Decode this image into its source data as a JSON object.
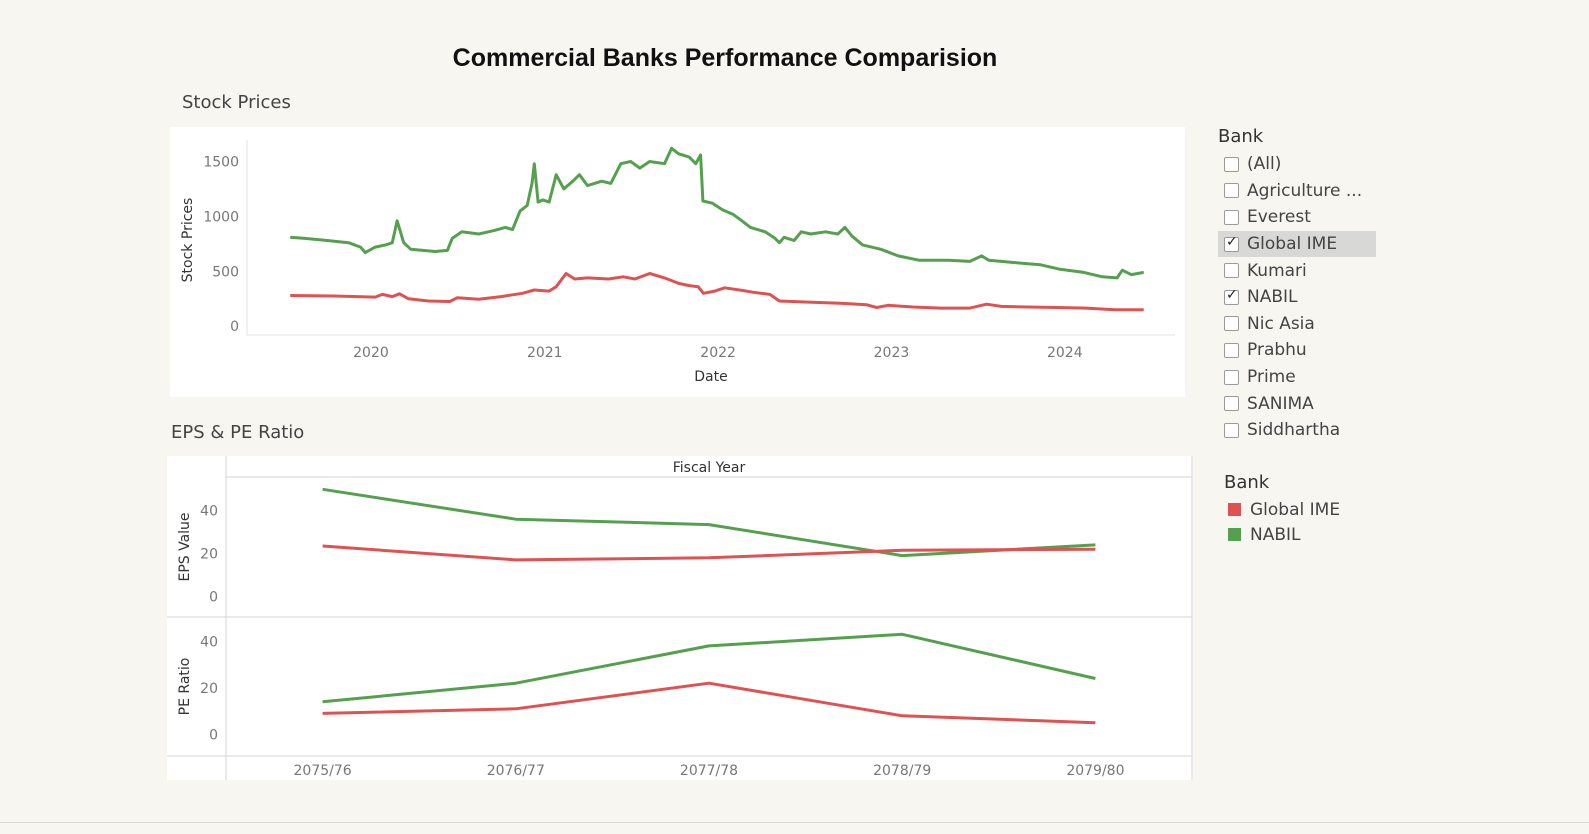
{
  "dashboard": {
    "title": "Commercial Banks Performance Comparision",
    "stock_section_title": "Stock Prices",
    "eps_section_title": "EPS & PE Ratio"
  },
  "filter": {
    "heading": "Bank",
    "items": [
      {
        "label": "(All)",
        "checked": false
      },
      {
        "label": "Agriculture ...",
        "checked": false
      },
      {
        "label": "Everest",
        "checked": false
      },
      {
        "label": "Global IME",
        "checked": true,
        "highlighted": true
      },
      {
        "label": "Kumari",
        "checked": false
      },
      {
        "label": "NABIL",
        "checked": true
      },
      {
        "label": "Nic Asia",
        "checked": false
      },
      {
        "label": "Prabhu",
        "checked": false
      },
      {
        "label": "Prime",
        "checked": false
      },
      {
        "label": "SANIMA",
        "checked": false
      },
      {
        "label": "Siddhartha",
        "checked": false
      }
    ]
  },
  "legend": {
    "heading": "Bank",
    "items": [
      {
        "label": "Global IME",
        "color": "#e05252"
      },
      {
        "label": "NABIL",
        "color": "#55a04f"
      }
    ]
  },
  "chart_data": [
    {
      "type": "line",
      "xlabel": "Date",
      "ylabel": "Stock Prices",
      "x_ticks": [
        "2020",
        "2021",
        "2022",
        "2023",
        "2024"
      ],
      "y_ticks": [
        0,
        500,
        1000,
        1500
      ],
      "ylim": [
        -80,
        1650
      ],
      "xlim": [
        "2019-04-15",
        "2024-08-20"
      ],
      "series": [
        {
          "name": "NABIL",
          "color": "#55a04f",
          "points": [
            [
              "2019-07-15",
              810
            ],
            [
              "2019-08-15",
              800
            ],
            [
              "2019-10-01",
              780
            ],
            [
              "2019-11-15",
              760
            ],
            [
              "2019-12-10",
              720
            ],
            [
              "2019-12-20",
              670
            ],
            [
              "2020-01-10",
              720
            ],
            [
              "2020-02-01",
              740
            ],
            [
              "2020-02-15",
              760
            ],
            [
              "2020-02-25",
              960
            ],
            [
              "2020-03-10",
              760
            ],
            [
              "2020-03-25",
              700
            ],
            [
              "2020-05-15",
              680
            ],
            [
              "2020-06-10",
              690
            ],
            [
              "2020-06-20",
              800
            ],
            [
              "2020-07-10",
              860
            ],
            [
              "2020-08-15",
              840
            ],
            [
              "2020-09-15",
              870
            ],
            [
              "2020-10-10",
              900
            ],
            [
              "2020-10-25",
              880
            ],
            [
              "2020-11-10",
              1050
            ],
            [
              "2020-11-25",
              1100
            ],
            [
              "2020-12-05",
              1300
            ],
            [
              "2020-12-10",
              1480
            ],
            [
              "2020-12-18",
              1130
            ],
            [
              "2020-12-28",
              1150
            ],
            [
              "2021-01-10",
              1130
            ],
            [
              "2021-01-25",
              1380
            ],
            [
              "2021-02-10",
              1250
            ],
            [
              "2021-03-01",
              1320
            ],
            [
              "2021-03-15",
              1380
            ],
            [
              "2021-04-01",
              1280
            ],
            [
              "2021-05-01",
              1320
            ],
            [
              "2021-05-20",
              1300
            ],
            [
              "2021-06-10",
              1480
            ],
            [
              "2021-07-01",
              1500
            ],
            [
              "2021-07-20",
              1440
            ],
            [
              "2021-08-10",
              1500
            ],
            [
              "2021-09-10",
              1480
            ],
            [
              "2021-09-25",
              1620
            ],
            [
              "2021-10-10",
              1570
            ],
            [
              "2021-11-01",
              1540
            ],
            [
              "2021-11-15",
              1480
            ],
            [
              "2021-11-25",
              1560
            ],
            [
              "2021-11-30",
              1140
            ],
            [
              "2021-12-20",
              1120
            ],
            [
              "2022-01-10",
              1060
            ],
            [
              "2022-02-01",
              1020
            ],
            [
              "2022-02-20",
              960
            ],
            [
              "2022-03-10",
              900
            ],
            [
              "2022-04-10",
              860
            ],
            [
              "2022-05-01",
              800
            ],
            [
              "2022-05-10",
              760
            ],
            [
              "2022-05-20",
              810
            ],
            [
              "2022-06-10",
              780
            ],
            [
              "2022-06-25",
              860
            ],
            [
              "2022-07-15",
              840
            ],
            [
              "2022-08-15",
              860
            ],
            [
              "2022-09-10",
              840
            ],
            [
              "2022-09-25",
              900
            ],
            [
              "2022-10-10",
              820
            ],
            [
              "2022-11-01",
              740
            ],
            [
              "2022-12-10",
              700
            ],
            [
              "2023-01-15",
              640
            ],
            [
              "2023-03-01",
              600
            ],
            [
              "2023-05-01",
              600
            ],
            [
              "2023-06-15",
              590
            ],
            [
              "2023-07-10",
              640
            ],
            [
              "2023-07-25",
              600
            ],
            [
              "2023-09-15",
              580
            ],
            [
              "2023-11-10",
              560
            ],
            [
              "2023-12-20",
              520
            ],
            [
              "2024-02-10",
              490
            ],
            [
              "2024-03-20",
              450
            ],
            [
              "2024-04-20",
              440
            ],
            [
              "2024-05-01",
              510
            ],
            [
              "2024-05-20",
              470
            ],
            [
              "2024-06-15",
              490
            ]
          ]
        },
        {
          "name": "Global IME",
          "color": "#e05252",
          "points": [
            [
              "2019-07-15",
              280
            ],
            [
              "2019-10-15",
              275
            ],
            [
              "2020-01-10",
              265
            ],
            [
              "2020-01-25",
              290
            ],
            [
              "2020-02-15",
              270
            ],
            [
              "2020-03-01",
              295
            ],
            [
              "2020-03-20",
              250
            ],
            [
              "2020-05-01",
              230
            ],
            [
              "2020-06-15",
              225
            ],
            [
              "2020-07-01",
              260
            ],
            [
              "2020-08-15",
              245
            ],
            [
              "2020-10-01",
              270
            ],
            [
              "2020-11-15",
              300
            ],
            [
              "2020-12-10",
              330
            ],
            [
              "2021-01-10",
              320
            ],
            [
              "2021-01-25",
              360
            ],
            [
              "2021-02-15",
              480
            ],
            [
              "2021-03-05",
              430
            ],
            [
              "2021-04-01",
              440
            ],
            [
              "2021-05-15",
              430
            ],
            [
              "2021-06-15",
              450
            ],
            [
              "2021-07-10",
              430
            ],
            [
              "2021-08-10",
              480
            ],
            [
              "2021-09-10",
              440
            ],
            [
              "2021-10-10",
              390
            ],
            [
              "2021-11-01",
              370
            ],
            [
              "2021-11-20",
              360
            ],
            [
              "2021-12-01",
              300
            ],
            [
              "2021-12-25",
              320
            ],
            [
              "2022-01-15",
              350
            ],
            [
              "2022-02-15",
              330
            ],
            [
              "2022-03-15",
              310
            ],
            [
              "2022-04-20",
              290
            ],
            [
              "2022-05-10",
              230
            ],
            [
              "2022-07-10",
              220
            ],
            [
              "2022-09-15",
              210
            ],
            [
              "2022-11-10",
              195
            ],
            [
              "2022-12-01",
              170
            ],
            [
              "2022-12-25",
              190
            ],
            [
              "2023-02-15",
              175
            ],
            [
              "2023-04-15",
              165
            ],
            [
              "2023-06-15",
              165
            ],
            [
              "2023-07-20",
              200
            ],
            [
              "2023-08-20",
              180
            ],
            [
              "2023-10-15",
              175
            ],
            [
              "2023-12-15",
              170
            ],
            [
              "2024-02-15",
              165
            ],
            [
              "2024-04-15",
              150
            ],
            [
              "2024-06-15",
              150
            ]
          ]
        }
      ]
    },
    {
      "type": "line",
      "column_header": "Fiscal Year",
      "categories": [
        "2075/76",
        "2076/77",
        "2077/78",
        "2078/79",
        "2079/80"
      ],
      "panels": [
        {
          "ylabel": "EPS Value",
          "y_ticks": [
            0,
            20,
            40
          ],
          "ylim": [
            -5,
            52
          ],
          "series": [
            {
              "name": "NABIL",
              "color": "#55a04f",
              "values": [
                50,
                36,
                33.5,
                19,
                24
              ]
            },
            {
              "name": "Global IME",
              "color": "#e05252",
              "values": [
                23.5,
                17,
                18,
                21.5,
                22
              ]
            }
          ]
        },
        {
          "ylabel": "PE Ratio",
          "y_ticks": [
            0,
            20,
            40
          ],
          "ylim": [
            -5,
            47
          ],
          "series": [
            {
              "name": "NABIL",
              "color": "#55a04f",
              "values": [
                14,
                22,
                38,
                43,
                24
              ]
            },
            {
              "name": "Global IME",
              "color": "#e05252",
              "values": [
                9,
                11,
                22,
                8,
                5
              ]
            }
          ]
        }
      ]
    }
  ]
}
